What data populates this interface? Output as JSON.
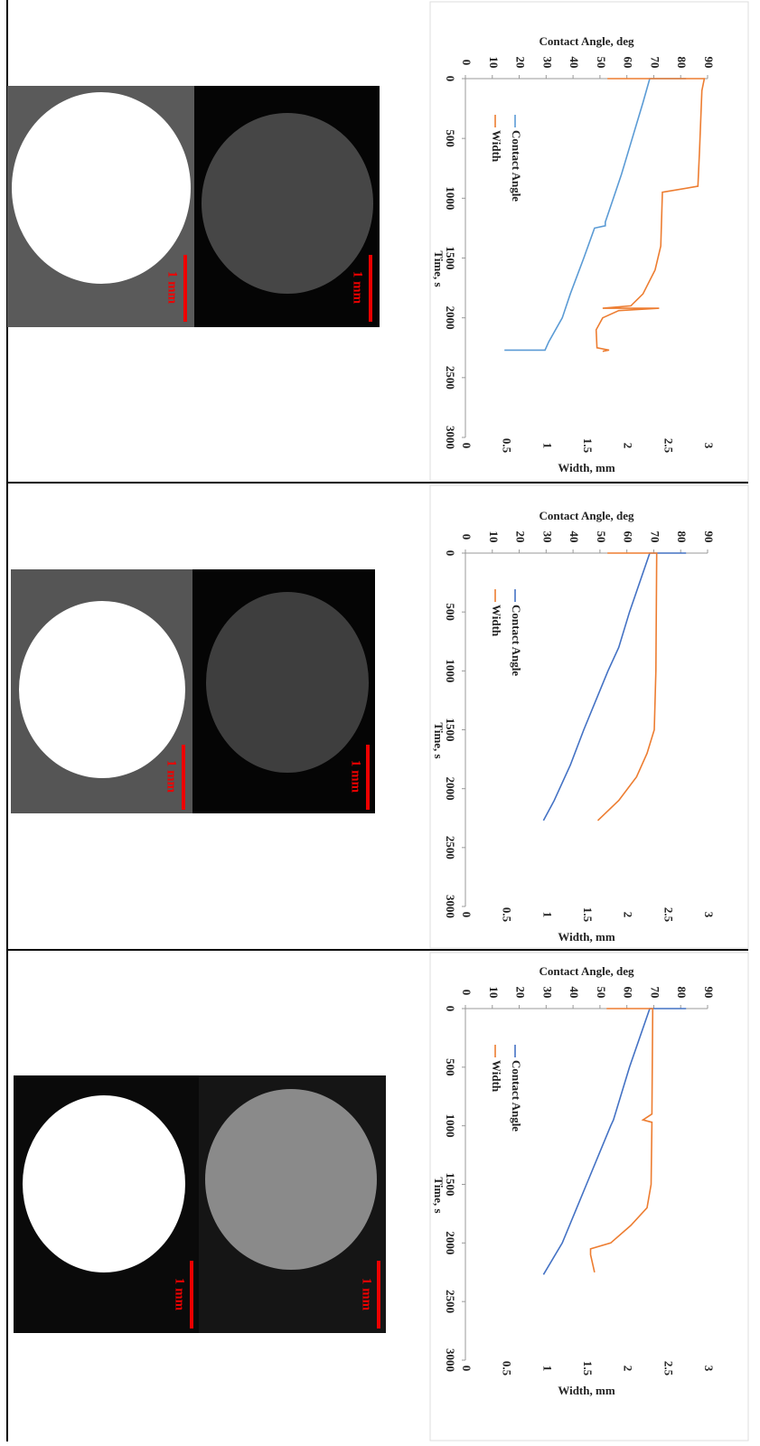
{
  "chart_data": [
    {
      "type": "line",
      "x_label": "Time, s",
      "y_label": "Contact Angle, deg",
      "y2_label": "Width, mm",
      "xlim": [
        0,
        3000
      ],
      "xticks": [
        0,
        500,
        1000,
        1500,
        2000,
        2500,
        3000
      ],
      "ylim": [
        0,
        90
      ],
      "yticks": [
        0,
        10,
        20,
        30,
        40,
        50,
        60,
        70,
        80,
        90
      ],
      "y2lim": [
        0,
        3
      ],
      "y2ticks": [
        0,
        0.5,
        1,
        1.5,
        2,
        2.5,
        3
      ],
      "series": [
        {
          "name": "Contact Angle",
          "color": "#5b9bd5",
          "x": [
            0,
            0,
            200,
            500,
            800,
            1000,
            1200,
            1230,
            1250,
            1500,
            1800,
            2000,
            2200,
            2270,
            2270
          ],
          "values": [
            82,
            68.5,
            66,
            62,
            58,
            55,
            52,
            52,
            48,
            44,
            39,
            36,
            31,
            29.6,
            14.5
          ]
        },
        {
          "name": "Width",
          "color": "#ed7d31",
          "axis": "y2",
          "x": [
            0,
            0,
            100,
            600,
            900,
            950,
            1400,
            1600,
            1800,
            1900,
            1920,
            1920,
            1940,
            2000,
            2100,
            2250,
            2270,
            2280
          ],
          "values": [
            1.76,
            2.96,
            2.93,
            2.9,
            2.88,
            2.44,
            2.42,
            2.35,
            2.2,
            2.05,
            1.7,
            2.4,
            1.9,
            1.7,
            1.62,
            1.63,
            1.78,
            1.7
          ]
        }
      ]
    },
    {
      "type": "line",
      "x_label": "Time, s",
      "y_label": "Contact Angle, deg",
      "y2_label": "Width, mm",
      "xlim": [
        0,
        3000
      ],
      "xticks": [
        0,
        500,
        1000,
        1500,
        2000,
        2500,
        3000
      ],
      "ylim": [
        0,
        90
      ],
      "yticks": [
        0,
        10,
        20,
        30,
        40,
        50,
        60,
        70,
        80,
        90
      ],
      "y2lim": [
        0,
        3
      ],
      "y2ticks": [
        0,
        0.5,
        1,
        1.5,
        2,
        2.5,
        3
      ],
      "series": [
        {
          "name": "Contact Angle",
          "color": "#4472c4",
          "x": [
            0,
            0,
            500,
            800,
            1000,
            1500,
            1800,
            2000,
            2100,
            2270
          ],
          "values": [
            82,
            68.5,
            61,
            57,
            53,
            44,
            39,
            35,
            33,
            29
          ]
        },
        {
          "name": "Width",
          "color": "#ed7d31",
          "axis": "y2",
          "x": [
            0,
            0,
            1000,
            1500,
            1700,
            1900,
            2100,
            2270
          ],
          "values": [
            1.76,
            2.37,
            2.36,
            2.34,
            2.25,
            2.12,
            1.9,
            1.64
          ]
        }
      ]
    },
    {
      "type": "line",
      "x_label": "Time, s",
      "y_label": "Contact Angle, deg",
      "y2_label": "Width, mm",
      "xlim": [
        0,
        3000
      ],
      "xticks": [
        0,
        500,
        1000,
        1500,
        2000,
        2500,
        3000
      ],
      "ylim": [
        0,
        90
      ],
      "yticks": [
        0,
        10,
        20,
        30,
        40,
        50,
        60,
        70,
        80,
        90
      ],
      "y2lim": [
        0,
        3
      ],
      "y2ticks": [
        0,
        0.5,
        1,
        1.5,
        2,
        2.5,
        3
      ],
      "series": [
        {
          "name": "Contact Angle",
          "color": "#4472c4",
          "x": [
            0,
            0,
            500,
            950,
            1000,
            1500,
            2000,
            2270
          ],
          "values": [
            82,
            68.5,
            61,
            55,
            54,
            45,
            36,
            29
          ]
        },
        {
          "name": "Width",
          "color": "#ed7d31",
          "axis": "y2",
          "x": [
            0,
            0,
            900,
            950,
            970,
            1500,
            1700,
            1850,
            2000,
            2050,
            2100,
            2250
          ],
          "values": [
            1.75,
            2.32,
            2.31,
            2.2,
            2.31,
            2.3,
            2.25,
            2.05,
            1.8,
            1.55,
            1.55,
            1.6
          ]
        }
      ]
    }
  ],
  "image_panels": [
    {
      "scale_bars": [
        "1 mm",
        "1 mm"
      ]
    },
    {
      "scale_bars": [
        "1 mm",
        "1 mm"
      ]
    },
    {
      "scale_bars": [
        "1 mm",
        "1 mm"
      ]
    }
  ]
}
